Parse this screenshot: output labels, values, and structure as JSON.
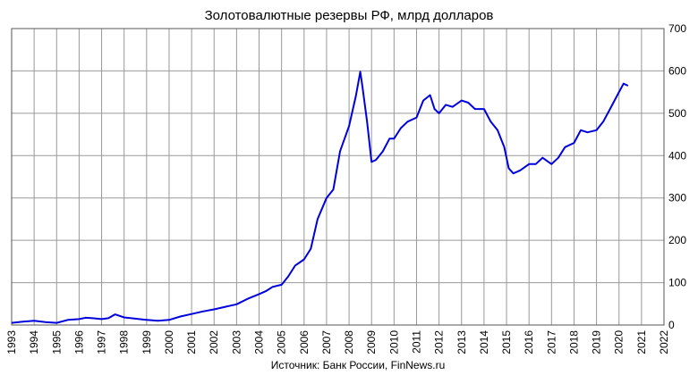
{
  "chart_data": {
    "type": "line",
    "title": "Золотовалютные резервы РФ, млрд долларов",
    "source": "Источник: Банк России, FinNews.ru",
    "xlabel": "",
    "ylabel": "",
    "xlim": [
      1993,
      2022
    ],
    "ylim": [
      0,
      700
    ],
    "y_axis_side": "right",
    "grid": true,
    "legend": "none",
    "line_color": "#0000dd",
    "grid_color": "#999999",
    "x_ticks": [
      "1993",
      "1994",
      "1995",
      "1996",
      "1997",
      "1998",
      "1999",
      "2000",
      "2001",
      "2002",
      "2003",
      "2004",
      "2005",
      "2006",
      "2007",
      "2008",
      "2009",
      "2010",
      "2011",
      "2012",
      "2013",
      "2014",
      "2015",
      "2016",
      "2017",
      "2018",
      "2019",
      "2020",
      "2021",
      "2022"
    ],
    "y_ticks": [
      "0",
      "100",
      "200",
      "300",
      "400",
      "500",
      "600",
      "700"
    ],
    "series": [
      {
        "x": [
          1993.0,
          1993.5,
          1994.0,
          1994.5,
          1995.0,
          1995.5,
          1996.0,
          1996.3,
          1996.6,
          1997.0,
          1997.3,
          1997.6,
          1998.0,
          1998.5,
          1998.8,
          1999.0,
          1999.5,
          2000.0,
          2000.5,
          2001.0,
          2001.5,
          2002.0,
          2002.5,
          2003.0,
          2003.5,
          2004.0,
          2004.3,
          2004.6,
          2005.0,
          2005.3,
          2005.6,
          2006.0,
          2006.3,
          2006.6,
          2007.0,
          2007.3,
          2007.6,
          2008.0,
          2008.3,
          2008.5,
          2008.6,
          2008.8,
          2009.0,
          2009.2,
          2009.5,
          2009.8,
          2010.0,
          2010.3,
          2010.6,
          2011.0,
          2011.3,
          2011.6,
          2011.8,
          2012.0,
          2012.3,
          2012.6,
          2013.0,
          2013.3,
          2013.6,
          2014.0,
          2014.3,
          2014.6,
          2014.9,
          2015.1,
          2015.3,
          2015.6,
          2016.0,
          2016.3,
          2016.6,
          2017.0,
          2017.3,
          2017.6,
          2018.0,
          2018.3,
          2018.6,
          2019.0,
          2019.3,
          2019.6,
          2020.0,
          2020.2,
          2020.4
        ],
        "y": [
          5,
          8,
          10,
          7,
          5,
          12,
          14,
          17,
          16,
          14,
          16,
          25,
          18,
          15,
          13,
          12,
          10,
          12,
          20,
          26,
          32,
          37,
          43,
          49,
          62,
          73,
          80,
          90,
          95,
          115,
          140,
          155,
          180,
          250,
          300,
          320,
          410,
          470,
          540,
          598,
          560,
          480,
          385,
          390,
          410,
          440,
          440,
          465,
          480,
          490,
          530,
          543,
          510,
          500,
          520,
          515,
          530,
          525,
          510,
          510,
          480,
          460,
          420,
          370,
          358,
          365,
          380,
          380,
          395,
          380,
          395,
          420,
          430,
          460,
          455,
          460,
          480,
          510,
          550,
          570,
          565
        ]
      }
    ]
  }
}
